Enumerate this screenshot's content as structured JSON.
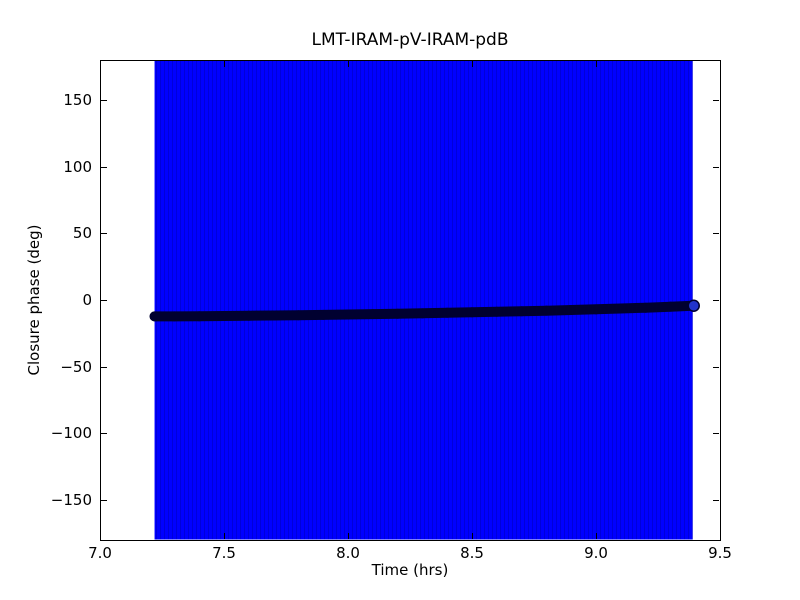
{
  "chart_data": {
    "type": "scatter",
    "title": "LMT-IRAM-pV-IRAM-pdB",
    "xlabel": "Time (hrs)",
    "ylabel": "Closure phase (deg)",
    "xlim": [
      7.0,
      9.5
    ],
    "ylim": [
      -180,
      180
    ],
    "x_ticks": [
      7.0,
      7.5,
      8.0,
      8.5,
      9.0,
      9.5
    ],
    "x_tick_labels": [
      "7.0",
      "7.5",
      "8.0",
      "8.5",
      "9.0",
      "9.5"
    ],
    "y_ticks": [
      -150,
      -100,
      -50,
      0,
      50,
      100,
      150
    ],
    "y_tick_labels": [
      "−150",
      "−100",
      "−50",
      "0",
      "50",
      "100",
      "150"
    ],
    "grid": false,
    "legend_position": "none",
    "colors": {
      "errorbar": "#0000ff",
      "errorbar_stripe": "#0000d9",
      "marker": "#000030",
      "marker_end_fill": "#2233cc",
      "axis": "#000000",
      "background": "#ffffff"
    },
    "errorbar_band": {
      "x_start": 7.22,
      "x_end": 9.39,
      "y_min": -180,
      "y_max": 180,
      "note": "vertical error bars on every sample span the full y-axis range"
    },
    "series": [
      {
        "name": "closure-phase",
        "marker": "circle",
        "points": [
          [
            7.22,
            -12.3
          ],
          [
            7.3,
            -12.3
          ],
          [
            7.4,
            -12.2
          ],
          [
            7.5,
            -12.0
          ],
          [
            7.6,
            -11.8
          ],
          [
            7.7,
            -11.6
          ],
          [
            7.8,
            -11.4
          ],
          [
            7.9,
            -11.2
          ],
          [
            8.0,
            -10.9
          ],
          [
            8.1,
            -10.6
          ],
          [
            8.2,
            -10.3
          ],
          [
            8.3,
            -10.0
          ],
          [
            8.4,
            -9.6
          ],
          [
            8.5,
            -9.2
          ],
          [
            8.6,
            -8.8
          ],
          [
            8.7,
            -8.4
          ],
          [
            8.8,
            -8.0
          ],
          [
            8.9,
            -7.5
          ],
          [
            9.0,
            -7.0
          ],
          [
            9.1,
            -6.4
          ],
          [
            9.2,
            -5.8
          ],
          [
            9.3,
            -5.0
          ],
          [
            9.39,
            -4.3
          ]
        ]
      }
    ]
  }
}
